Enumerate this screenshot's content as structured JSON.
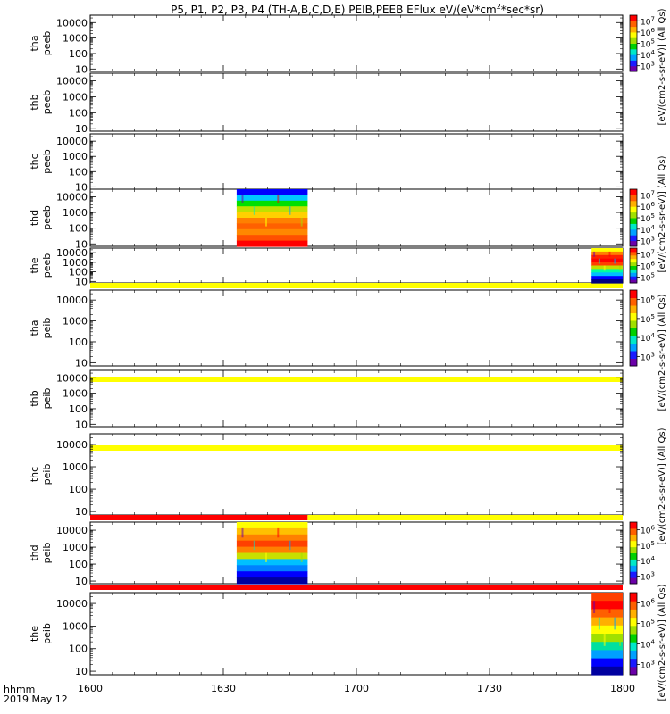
{
  "chart_data": {
    "type": "heatmap",
    "title": "P5, P1, P2, P3, P4 (TH-A,B,C,D,E) PEIB,PEEB EFlux eV/(eV*cm",
    "title_sup": "2",
    "title_tail": "*sec*sr)",
    "x_axis": {
      "range": [
        0,
        120
      ],
      "ticks": [
        {
          "value": 0,
          "label": "1600"
        },
        {
          "value": 30,
          "label": "1630"
        },
        {
          "value": 60,
          "label": "1700"
        },
        {
          "value": 90,
          "label": "1730"
        },
        {
          "value": 120,
          "label": "1800"
        }
      ],
      "corner_label_1": "hhmm",
      "corner_label_2": "2019 May 12"
    },
    "y_axis": {
      "scale": "log",
      "range": [
        7,
        30000
      ],
      "ticks": [
        {
          "value": 10,
          "label": "10"
        },
        {
          "value": 100,
          "label": "100"
        },
        {
          "value": 1000,
          "label": "1000"
        },
        {
          "value": 10000,
          "label": "10000"
        }
      ]
    },
    "colorbar_colors": [
      "#6a00a8",
      "#1a1aff",
      "#00a0ff",
      "#00e8c8",
      "#00d000",
      "#a0e000",
      "#ffff00",
      "#ffb000",
      "#ff6000",
      "#ff0000"
    ],
    "panels": [
      {
        "ylabel_1": "tha",
        "ylabel_2": "peeb",
        "data_spans": [],
        "flag_bar_after": null,
        "colorbar": {
          "ticks": [
            {
              "exp": "7"
            },
            {
              "exp": "6"
            },
            {
              "exp": "5"
            },
            {
              "exp": "4"
            },
            {
              "exp": "3"
            }
          ],
          "label": "eV/(cm2-s-sr-eV)"
        }
      },
      {
        "ylabel_1": "thb",
        "ylabel_2": "peeb",
        "data_spans": [],
        "flag_bar_after": null,
        "colorbar": null
      },
      {
        "ylabel_1": "thc",
        "ylabel_2": "peeb",
        "data_spans": [],
        "flag_bar_after": null,
        "colorbar": null
      },
      {
        "ylabel_1": "thd",
        "ylabel_2": "peeb",
        "data_spans": [
          {
            "x_start": 33,
            "x_end": 49,
            "style": "electron_d"
          }
        ],
        "flag_bar_after": null,
        "colorbar": {
          "ticks": [
            {
              "exp": "7"
            },
            {
              "exp": "6"
            },
            {
              "exp": "5"
            },
            {
              "exp": "4"
            },
            {
              "exp": "3"
            }
          ],
          "label": "eV/(cm2-s-sr-eV)"
        }
      },
      {
        "ylabel_1": "the",
        "ylabel_2": "peeb",
        "data_spans": [
          {
            "x_start": 113,
            "x_end": 120,
            "style": "electron_e"
          }
        ],
        "flag_bar_after": [
          {
            "x_start": 0,
            "x_end": 120,
            "color": "#ffff00"
          }
        ],
        "colorbar": {
          "ticks": [
            {
              "exp": "7"
            },
            {
              "exp": "6"
            },
            {
              "exp": "5"
            }
          ],
          "label": "eV/(cm2-s-sr-eV)"
        }
      },
      {
        "ylabel_1": "tha",
        "ylabel_2": "peib",
        "data_spans": [],
        "flag_bar_after": [
          {
            "x_start": 0,
            "x_end": 120,
            "color": "#ffff00"
          }
        ],
        "colorbar": {
          "ticks": [
            {
              "exp": "6"
            },
            {
              "exp": "5"
            },
            {
              "exp": "4"
            },
            {
              "exp": "3"
            }
          ],
          "label": "eV/(cm2-s-sr-eV)"
        }
      },
      {
        "ylabel_1": "thb",
        "ylabel_2": "peib",
        "data_spans": [],
        "flag_bar_after": [
          {
            "x_start": 0,
            "x_end": 120,
            "color": "#ffff00"
          }
        ],
        "colorbar": null
      },
      {
        "ylabel_1": "thc",
        "ylabel_2": "peib",
        "data_spans": [],
        "flag_bar_after": [
          {
            "x_start": 0,
            "x_end": 49,
            "color": "#ff0000"
          },
          {
            "x_start": 49,
            "x_end": 120,
            "color": "#ffff00"
          }
        ],
        "colorbar": null
      },
      {
        "ylabel_1": "thd",
        "ylabel_2": "peib",
        "data_spans": [
          {
            "x_start": 33,
            "x_end": 49,
            "style": "ion_d"
          }
        ],
        "flag_bar_after": [
          {
            "x_start": 0,
            "x_end": 120,
            "color": "#ff0000"
          }
        ],
        "colorbar": {
          "ticks": [
            {
              "exp": "6"
            },
            {
              "exp": "5"
            },
            {
              "exp": "4"
            },
            {
              "exp": "3"
            }
          ],
          "label": "eV/(cm2-s-sr-eV)"
        }
      },
      {
        "ylabel_1": "the",
        "ylabel_2": "peib",
        "data_spans": [
          {
            "x_start": 113,
            "x_end": 120,
            "style": "ion_e"
          }
        ],
        "flag_bar_after": null,
        "colorbar": {
          "ticks": [
            {
              "exp": "6"
            },
            {
              "exp": "5"
            },
            {
              "exp": "4"
            },
            {
              "exp": "3"
            }
          ],
          "label": "eV/(cm2-s-sr-eV)"
        }
      }
    ],
    "right_labels": [
      {
        "text": "[eV/(cm2-s-sr-eV)] (All Qs)"
      },
      {
        "text": "[eV/(cm2-s-sr-eV)] (All Qs)"
      },
      {
        "text": "[eV/(cm2-s-sr-eV)] (All Qs)"
      },
      {
        "text": "[eV/(cm2-s-sr-eV)] (All Qs)"
      },
      {
        "text": "[eV/(cm2-s-sr-eV)] (All Qs)"
      }
    ]
  }
}
